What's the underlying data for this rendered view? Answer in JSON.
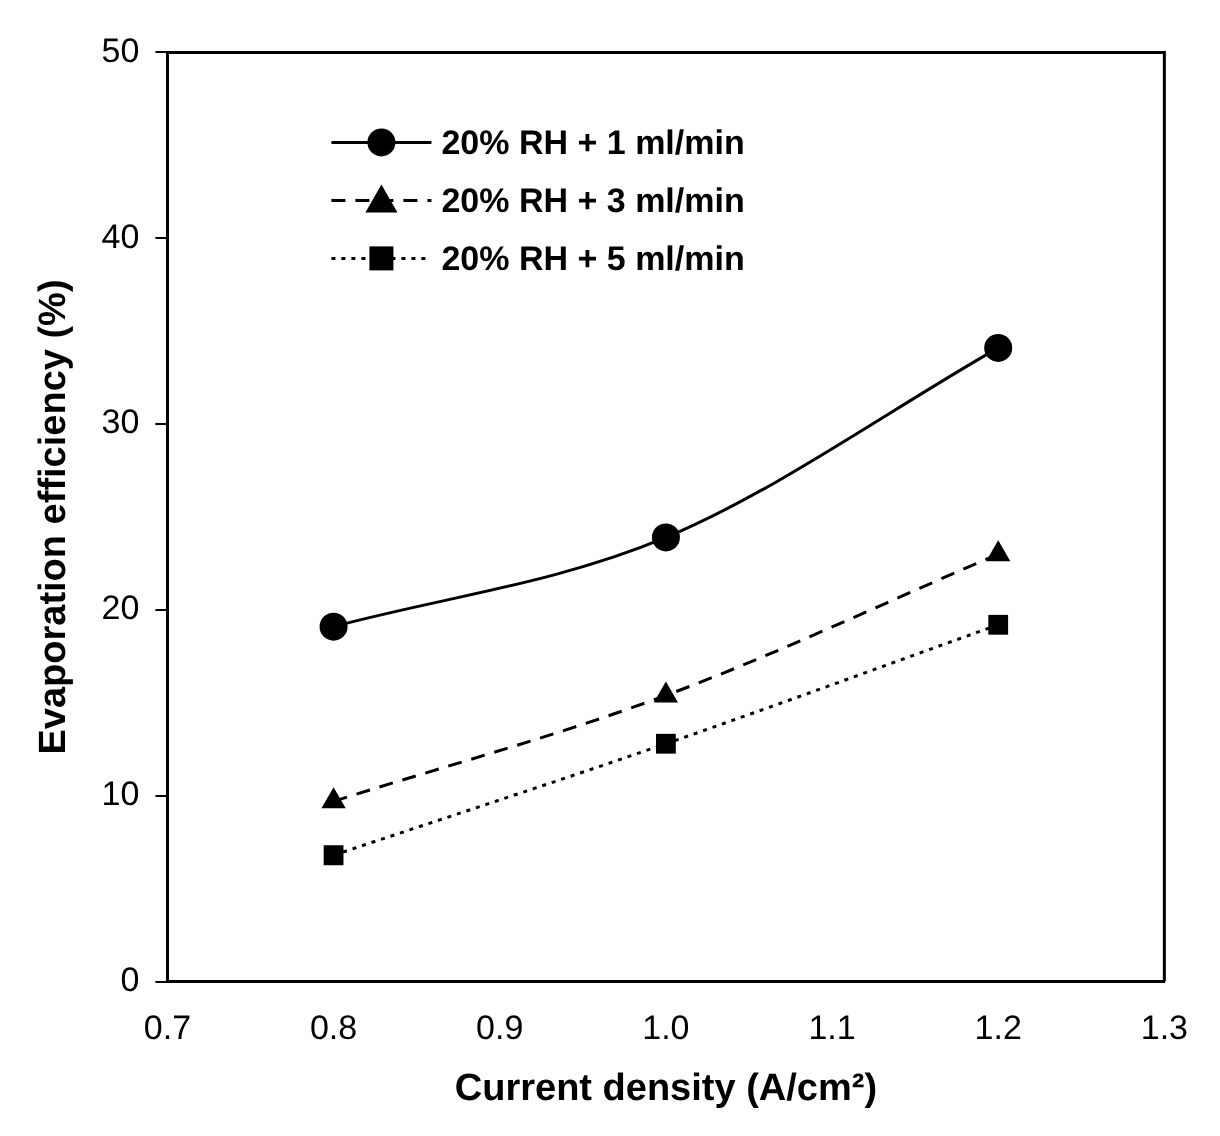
{
  "chart_data": {
    "type": "line",
    "xlabel": "Current density (A/cm²)",
    "ylabel": "Evaporation efficiency (%)",
    "x": [
      0.8,
      1.0,
      1.2
    ],
    "series": [
      {
        "name": "20% RH + 1 ml/min",
        "color": "#000000",
        "values": [
          19.1,
          23.9,
          34.1
        ],
        "marker": "circle",
        "line_style": "solid"
      },
      {
        "name": "20% RH + 3 ml/min",
        "color": "#000000",
        "values": [
          9.7,
          15.4,
          23.0
        ],
        "marker": "triangle",
        "line_style": "dashed"
      },
      {
        "name": "20% RH + 5 ml/min",
        "color": "#000000",
        "values": [
          6.8,
          12.8,
          19.2
        ],
        "marker": "square",
        "line_style": "dotted"
      }
    ],
    "xlim": [
      0.7,
      1.3
    ],
    "xticks": [
      {
        "value": 0.7,
        "label": "0.7"
      },
      {
        "value": 0.8,
        "label": "0.8"
      },
      {
        "value": 0.9,
        "label": "0.9"
      },
      {
        "value": 1.0,
        "label": "1.0"
      },
      {
        "value": 1.1,
        "label": "1.1"
      },
      {
        "value": 1.2,
        "label": "1.2"
      },
      {
        "value": 1.3,
        "label": "1.3"
      }
    ],
    "ylim": [
      0,
      50
    ],
    "yticks": [
      0,
      10,
      20,
      30,
      40,
      50
    ],
    "grid": false,
    "legend": "top left"
  }
}
